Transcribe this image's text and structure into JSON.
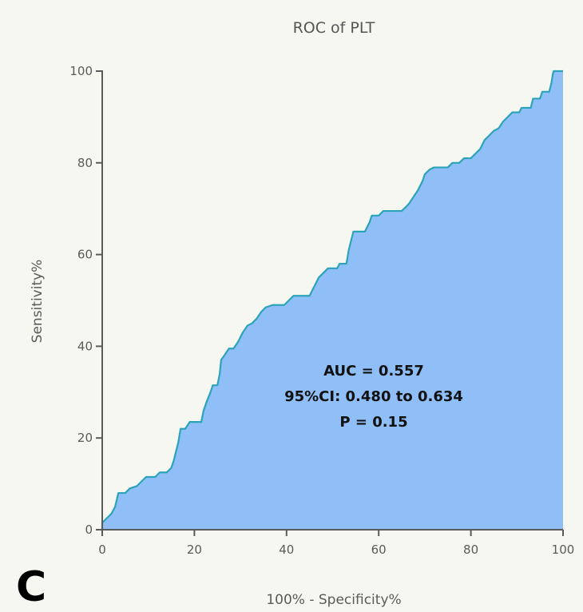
{
  "chart_data": {
    "type": "area",
    "title": "ROC of PLT",
    "xlabel": "100% - Specificity%",
    "ylabel": "Sensitivity%",
    "xlim": [
      0,
      100
    ],
    "ylim": [
      0,
      100
    ],
    "x_ticks": [
      0,
      20,
      40,
      60,
      80,
      100
    ],
    "y_ticks": [
      0,
      20,
      40,
      60,
      80,
      100
    ],
    "grid": false,
    "series": [
      {
        "points": [
          [
            0,
            0
          ],
          [
            0,
            1.5
          ],
          [
            1,
            2.5
          ],
          [
            2,
            3.5
          ],
          [
            2.8,
            5
          ],
          [
            3.5,
            8
          ],
          [
            5,
            8
          ],
          [
            6,
            9
          ],
          [
            7.5,
            9.5
          ],
          [
            8.5,
            10.5
          ],
          [
            9.5,
            11.5
          ],
          [
            11.5,
            11.5
          ],
          [
            12.5,
            12.5
          ],
          [
            14,
            12.5
          ],
          [
            15,
            13.5
          ],
          [
            15.5,
            15
          ],
          [
            16,
            17
          ],
          [
            16.5,
            19
          ],
          [
            17,
            22
          ],
          [
            18,
            22
          ],
          [
            19,
            23.5
          ],
          [
            21.5,
            23.5
          ],
          [
            22,
            26
          ],
          [
            22.7,
            28
          ],
          [
            23.5,
            30
          ],
          [
            24,
            31.5
          ],
          [
            25,
            31.5
          ],
          [
            25.5,
            34
          ],
          [
            25.8,
            37
          ],
          [
            26.5,
            38
          ],
          [
            27.5,
            39.5
          ],
          [
            28.5,
            39.5
          ],
          [
            29.5,
            41
          ],
          [
            30.5,
            43
          ],
          [
            31.5,
            44.5
          ],
          [
            32.5,
            45
          ],
          [
            33.5,
            46
          ],
          [
            34.5,
            47.5
          ],
          [
            35.5,
            48.5
          ],
          [
            37,
            49
          ],
          [
            39.5,
            49
          ],
          [
            40.5,
            50
          ],
          [
            41.5,
            51
          ],
          [
            45,
            51
          ],
          [
            46,
            53
          ],
          [
            47,
            55
          ],
          [
            48,
            56
          ],
          [
            49,
            57
          ],
          [
            51,
            57
          ],
          [
            51.5,
            58
          ],
          [
            53,
            58
          ],
          [
            53.5,
            61
          ],
          [
            54,
            63
          ],
          [
            54.5,
            65
          ],
          [
            57,
            65
          ],
          [
            58,
            67
          ],
          [
            58.5,
            68.5
          ],
          [
            60,
            68.5
          ],
          [
            61,
            69.5
          ],
          [
            65,
            69.5
          ],
          [
            66.5,
            71
          ],
          [
            67.5,
            72.5
          ],
          [
            68.5,
            74
          ],
          [
            69.5,
            76
          ],
          [
            70,
            77.5
          ],
          [
            71,
            78.5
          ],
          [
            72,
            79
          ],
          [
            75,
            79
          ],
          [
            76,
            80
          ],
          [
            77.5,
            80
          ],
          [
            78.5,
            81
          ],
          [
            80,
            81
          ],
          [
            81,
            82
          ],
          [
            82,
            83
          ],
          [
            83,
            85
          ],
          [
            84,
            86
          ],
          [
            85,
            87
          ],
          [
            86,
            87.5
          ],
          [
            87,
            89
          ],
          [
            88,
            90
          ],
          [
            89,
            91
          ],
          [
            90.5,
            91
          ],
          [
            91,
            92
          ],
          [
            93,
            92
          ],
          [
            93.5,
            94
          ],
          [
            95,
            94
          ],
          [
            95.5,
            95.5
          ],
          [
            97,
            95.5
          ],
          [
            97.5,
            97.5
          ],
          [
            97.8,
            99.5
          ],
          [
            98,
            100
          ],
          [
            100,
            100
          ]
        ]
      }
    ],
    "annotations": [
      "AUC = 0.557",
      "95%CI: 0.480 to 0.634",
      "P = 0.15"
    ],
    "panel_label": "C",
    "colors": {
      "fill": "#90bff7",
      "line": "#2ba3b8",
      "axis": "#5a5a5a"
    }
  }
}
